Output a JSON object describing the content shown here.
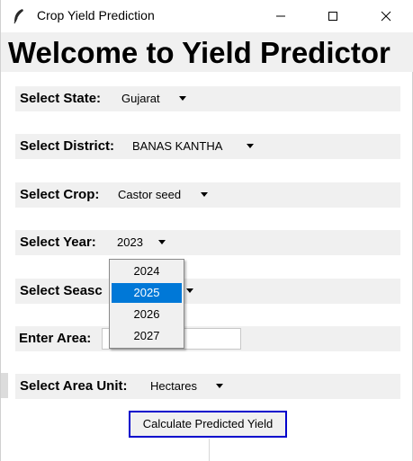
{
  "window": {
    "title": "Crop Yield Prediction"
  },
  "header": {
    "welcome": "Welcome to Yield Predictor"
  },
  "form": {
    "state": {
      "label": "Select State:",
      "value": "Gujarat"
    },
    "district": {
      "label": "Select District:",
      "value": "BANAS KANTHA"
    },
    "crop": {
      "label": "Select Crop:",
      "value": "Castor seed"
    },
    "year": {
      "label": "Select Year:",
      "value": "2023"
    },
    "season": {
      "label": "Select Seasc",
      "value": ""
    },
    "area": {
      "label": "Enter Area:",
      "value": ""
    },
    "area_unit": {
      "label": "Select Area Unit:",
      "value": "Hectares"
    },
    "calculate_label": "Calculate Predicted Yield"
  },
  "year_dropdown": {
    "options": [
      "2024",
      "2025",
      "2026",
      "2027"
    ],
    "highlighted": "2025"
  },
  "colors": {
    "highlight": "#0078d7",
    "button_border": "#0000cc",
    "panel": "#f0f0f0"
  }
}
